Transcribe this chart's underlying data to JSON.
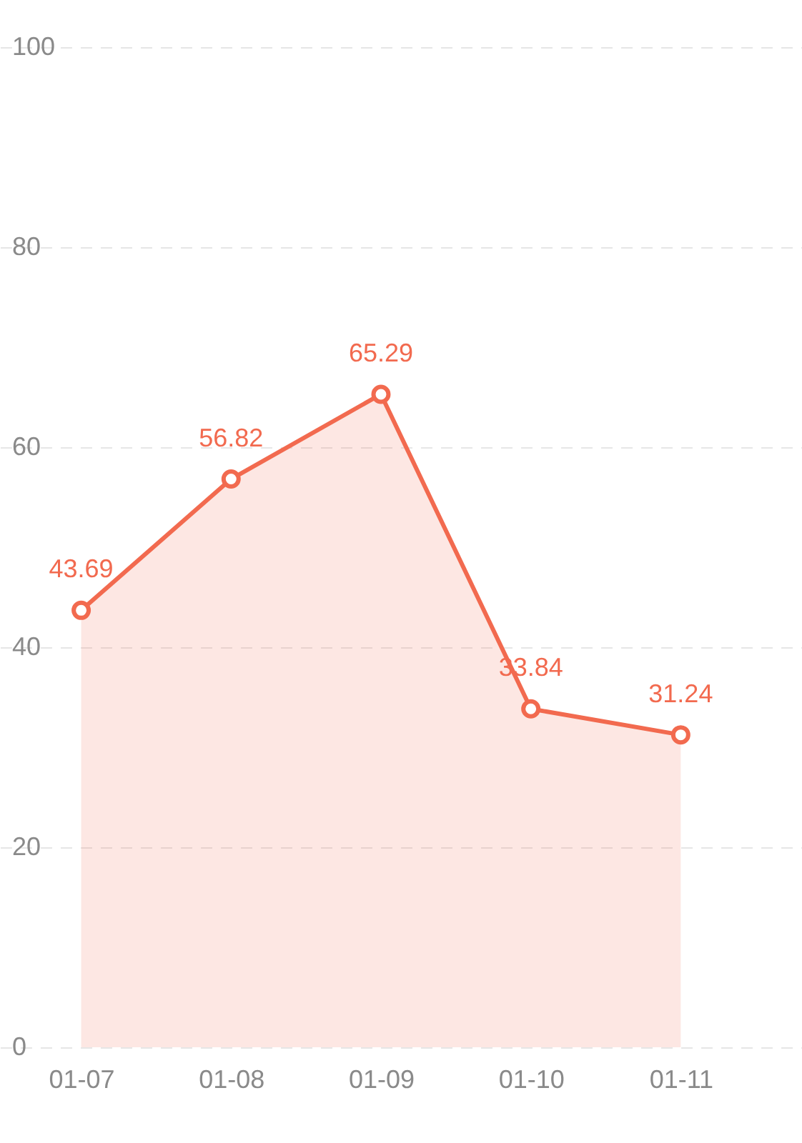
{
  "chart_data": {
    "type": "area",
    "x": [
      "--01-07",
      "--01-08",
      "--01-09",
      "--01-10",
      "--01-11"
    ],
    "series": [
      {
        "color": "#f26a4f",
        "values": [
          43.69,
          56.82,
          65.29,
          33.84,
          31.24
        ]
      }
    ],
    "data_labels": true,
    "xlim": [
      "--01-06T11:00",
      "--01-11T19:25"
    ],
    "xticks": [
      {
        "value": "--01-07",
        "label": "01-07"
      },
      {
        "value": "--01-08",
        "label": "01-08"
      },
      {
        "value": "--01-09",
        "label": "01-09"
      },
      {
        "value": "--01-10",
        "label": "01-10"
      },
      {
        "value": "--01-11",
        "label": "01-11"
      }
    ],
    "ylim": [
      0,
      100
    ],
    "yticks": [
      0,
      20,
      40,
      60,
      80,
      100
    ],
    "grid": "y",
    "marker": "circle",
    "line_style": "solid"
  }
}
